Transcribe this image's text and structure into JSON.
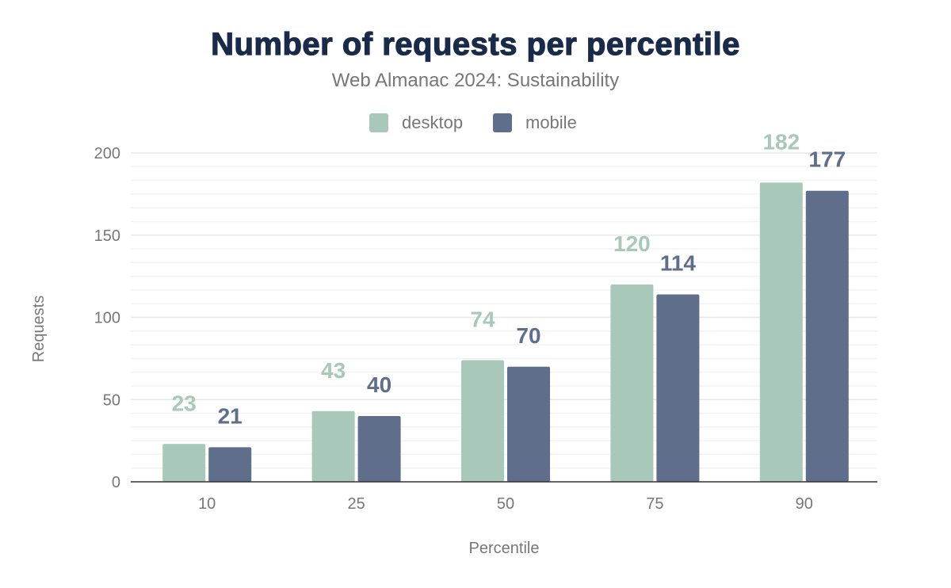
{
  "chart_data": {
    "type": "bar",
    "title": "Number of requests per percentile",
    "subtitle": "Web Almanac 2024: Sustainability",
    "xlabel": "Percentile",
    "ylabel": "Requests",
    "categories": [
      "10",
      "25",
      "50",
      "75",
      "90"
    ],
    "series": [
      {
        "name": "desktop",
        "color": "#a8c9b9",
        "values": [
          23,
          43,
          74,
          120,
          182
        ]
      },
      {
        "name": "mobile",
        "color": "#5f6e8a",
        "values": [
          21,
          40,
          70,
          114,
          177
        ]
      }
    ],
    "ylim": [
      0,
      200
    ],
    "yticks": [
      0,
      50,
      100,
      150,
      200
    ],
    "grid": true,
    "legend": "top-center",
    "data_labels": true
  }
}
